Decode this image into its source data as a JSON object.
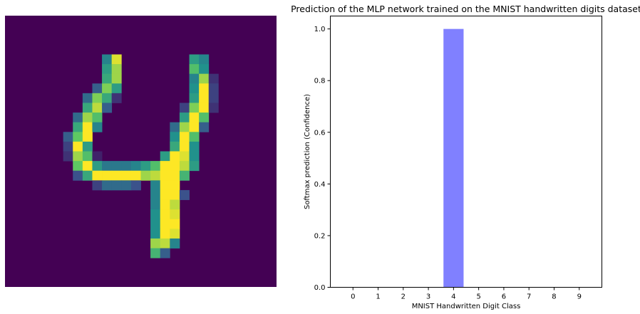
{
  "chart_data": [
    {
      "type": "heatmap",
      "colormap": "viridis",
      "rows": 28,
      "cols": 28,
      "axis": "off",
      "cells": [
        [
          4,
          10,
          0.45
        ],
        [
          4,
          11,
          0.95
        ],
        [
          4,
          19,
          0.55
        ],
        [
          4,
          20,
          0.45
        ],
        [
          5,
          10,
          0.55
        ],
        [
          5,
          11,
          0.85
        ],
        [
          5,
          19,
          0.7
        ],
        [
          5,
          20,
          0.5
        ],
        [
          6,
          10,
          0.6
        ],
        [
          6,
          11,
          0.85
        ],
        [
          6,
          19,
          0.45
        ],
        [
          6,
          20,
          0.85
        ],
        [
          6,
          21,
          0.15
        ],
        [
          7,
          9,
          0.3
        ],
        [
          7,
          10,
          0.8
        ],
        [
          7,
          11,
          0.55
        ],
        [
          7,
          19,
          0.5
        ],
        [
          7,
          20,
          1.0
        ],
        [
          7,
          21,
          0.2
        ],
        [
          8,
          8,
          0.35
        ],
        [
          8,
          9,
          0.8
        ],
        [
          8,
          10,
          0.6
        ],
        [
          8,
          11,
          0.15
        ],
        [
          8,
          19,
          0.55
        ],
        [
          8,
          20,
          1.0
        ],
        [
          8,
          21,
          0.2
        ],
        [
          9,
          8,
          0.6
        ],
        [
          9,
          9,
          0.9
        ],
        [
          9,
          10,
          0.3
        ],
        [
          9,
          18,
          0.2
        ],
        [
          9,
          19,
          0.8
        ],
        [
          9,
          20,
          1.0
        ],
        [
          9,
          21,
          0.15
        ],
        [
          10,
          7,
          0.35
        ],
        [
          10,
          8,
          0.85
        ],
        [
          10,
          9,
          0.7
        ],
        [
          10,
          18,
          0.55
        ],
        [
          10,
          19,
          1.0
        ],
        [
          10,
          20,
          0.7
        ],
        [
          11,
          7,
          0.6
        ],
        [
          11,
          8,
          1.0
        ],
        [
          11,
          9,
          0.45
        ],
        [
          11,
          17,
          0.35
        ],
        [
          11,
          18,
          0.85
        ],
        [
          11,
          19,
          1.0
        ],
        [
          11,
          20,
          0.3
        ],
        [
          12,
          6,
          0.3
        ],
        [
          12,
          7,
          0.75
        ],
        [
          12,
          8,
          1.0
        ],
        [
          12,
          17,
          0.5
        ],
        [
          12,
          18,
          1.0
        ],
        [
          12,
          19,
          0.7
        ],
        [
          13,
          6,
          0.2
        ],
        [
          13,
          7,
          1.0
        ],
        [
          13,
          8,
          0.55
        ],
        [
          13,
          17,
          0.6
        ],
        [
          13,
          18,
          1.0
        ],
        [
          13,
          19,
          0.5
        ],
        [
          14,
          6,
          0.15
        ],
        [
          14,
          7,
          0.85
        ],
        [
          14,
          8,
          0.7
        ],
        [
          14,
          9,
          0.1
        ],
        [
          14,
          16,
          0.55
        ],
        [
          14,
          17,
          1.0
        ],
        [
          14,
          18,
          0.95
        ],
        [
          14,
          19,
          0.5
        ],
        [
          15,
          7,
          0.75
        ],
        [
          15,
          8,
          1.0
        ],
        [
          15,
          9,
          0.55
        ],
        [
          15,
          10,
          0.4
        ],
        [
          15,
          11,
          0.4
        ],
        [
          15,
          12,
          0.4
        ],
        [
          15,
          13,
          0.45
        ],
        [
          15,
          14,
          0.55
        ],
        [
          15,
          15,
          0.7
        ],
        [
          15,
          16,
          1.0
        ],
        [
          15,
          17,
          1.0
        ],
        [
          15,
          18,
          0.9
        ],
        [
          15,
          19,
          0.55
        ],
        [
          16,
          7,
          0.25
        ],
        [
          16,
          8,
          0.6
        ],
        [
          16,
          9,
          1.0
        ],
        [
          16,
          10,
          1.0
        ],
        [
          16,
          11,
          1.0
        ],
        [
          16,
          12,
          1.0
        ],
        [
          16,
          13,
          1.0
        ],
        [
          16,
          14,
          0.85
        ],
        [
          16,
          15,
          0.9
        ],
        [
          16,
          16,
          1.0
        ],
        [
          16,
          17,
          1.0
        ],
        [
          16,
          18,
          0.65
        ],
        [
          17,
          9,
          0.2
        ],
        [
          17,
          10,
          0.35
        ],
        [
          17,
          11,
          0.35
        ],
        [
          17,
          12,
          0.35
        ],
        [
          17,
          13,
          0.25
        ],
        [
          17,
          15,
          0.45
        ],
        [
          17,
          16,
          1.0
        ],
        [
          17,
          17,
          1.0
        ],
        [
          18,
          15,
          0.45
        ],
        [
          18,
          16,
          1.0
        ],
        [
          18,
          17,
          1.0
        ],
        [
          18,
          18,
          0.25
        ],
        [
          19,
          15,
          0.45
        ],
        [
          19,
          16,
          1.0
        ],
        [
          19,
          17,
          0.9
        ],
        [
          20,
          15,
          0.5
        ],
        [
          20,
          16,
          1.0
        ],
        [
          20,
          17,
          0.95
        ],
        [
          21,
          15,
          0.5
        ],
        [
          21,
          16,
          1.0
        ],
        [
          21,
          17,
          1.0
        ],
        [
          22,
          15,
          0.5
        ],
        [
          22,
          16,
          1.0
        ],
        [
          22,
          17,
          0.95
        ],
        [
          23,
          15,
          0.85
        ],
        [
          23,
          16,
          0.9
        ],
        [
          23,
          17,
          0.45
        ],
        [
          24,
          15,
          0.65
        ],
        [
          24,
          16,
          0.3
        ]
      ]
    },
    {
      "type": "bar",
      "title": "Prediction of the MLP network trained on the MNIST handwritten digits dataset",
      "xlabel": "MNIST Handwritten Digit Class",
      "ylabel": "Softmax prediction (Confidence)",
      "categories": [
        "0",
        "1",
        "2",
        "3",
        "4",
        "5",
        "6",
        "7",
        "8",
        "9"
      ],
      "values": [
        0,
        0,
        0,
        0,
        1.0,
        0,
        0,
        0,
        0,
        0
      ],
      "ylim": [
        0,
        1.05
      ],
      "yticks": [
        "0.0",
        "0.2",
        "0.4",
        "0.6",
        "0.8",
        "1.0"
      ],
      "bar_color": "#8080ff",
      "grid": false
    }
  ]
}
